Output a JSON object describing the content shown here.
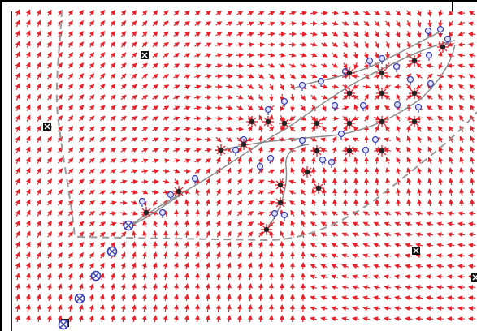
{
  "figure": {
    "background": "#ffffff",
    "arrow_color": "#e8212b",
    "marker_color": "#3a3fb5",
    "node_color": "#111111",
    "boundary_color": "#9a9a9a",
    "frame_color": "#000000"
  },
  "icons": {
    "obstacle": "boxed-cross-icon",
    "crossed_circle": "crossed-circle-icon",
    "waypoint": "pin-icon",
    "junction": "asterisk-node-icon"
  }
}
